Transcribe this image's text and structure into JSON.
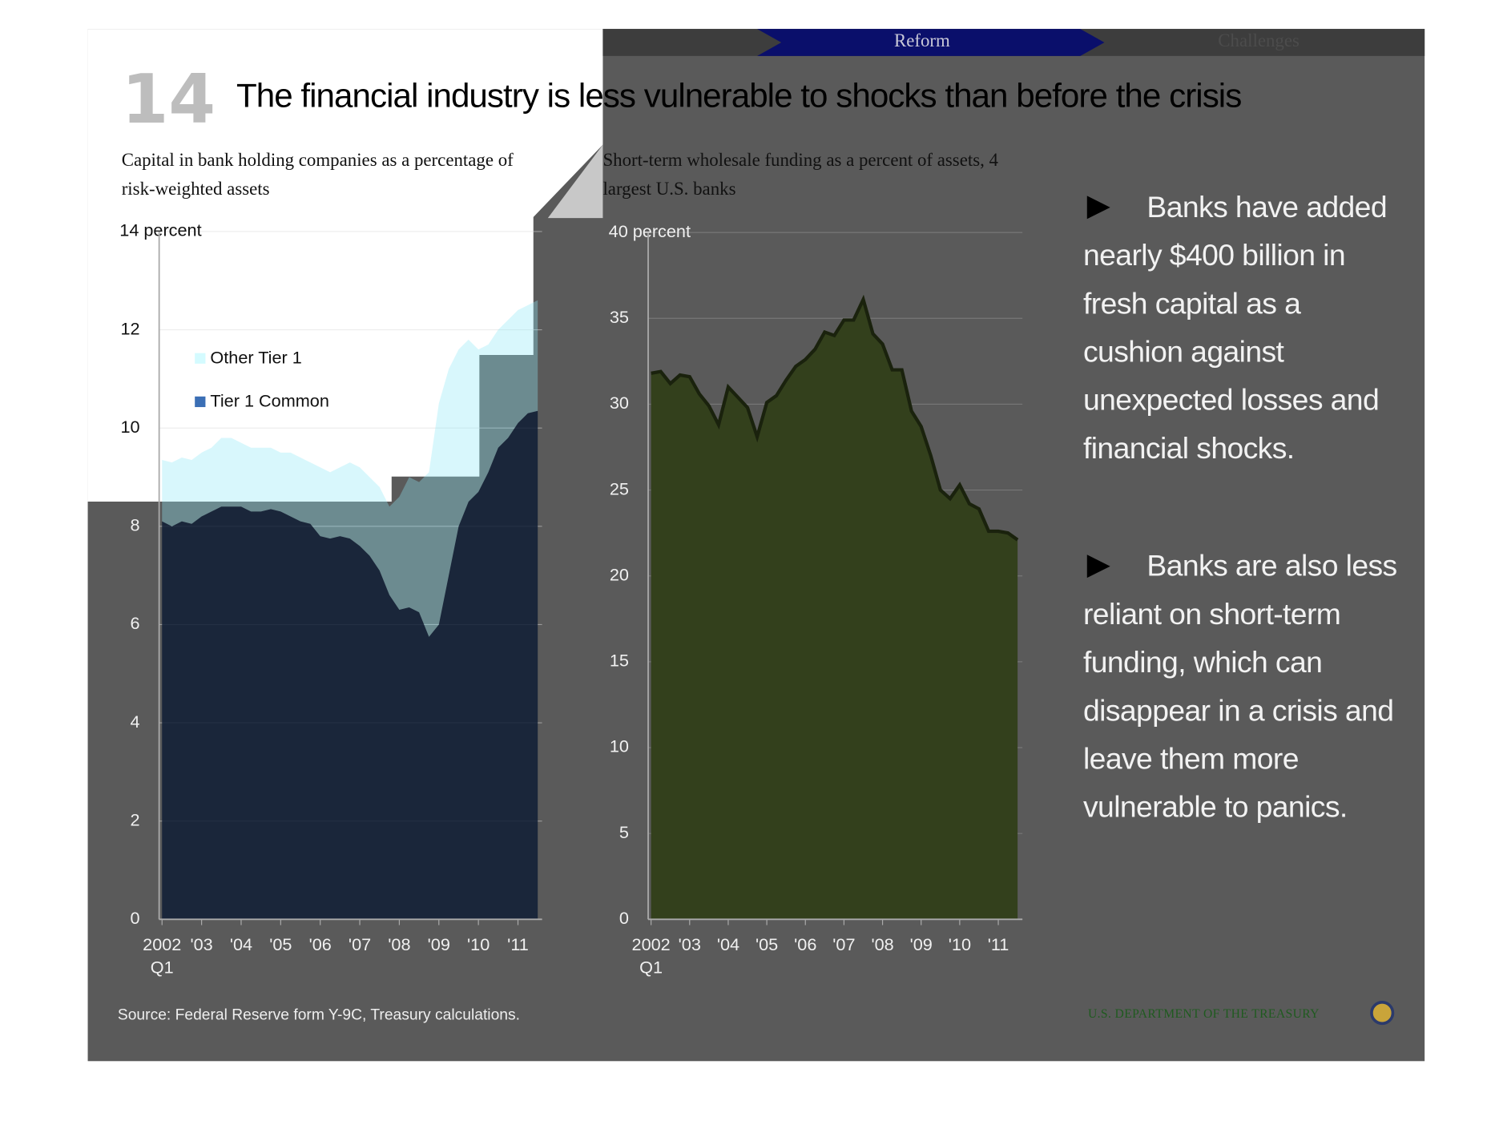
{
  "nav": [
    "Reform",
    "Challenges"
  ],
  "slide_number": "14",
  "title": "The financial industry is less vulnerable to shocks than before the crisis",
  "bullets": [
    "Banks have added nearly  $400 billion in fresh capital as a cushion against unexpected losses and financial shocks.",
    "Banks are also less reliant on short-term funding, which can disappear in a crisis and leave them more vulnerable to panics."
  ],
  "source": "Source: Federal Reserve form Y-9C, Treasury calculations.",
  "footer": "U.S. DEPARTMENT OF THE TREASURY",
  "chart_data": [
    {
      "type": "stacked_area",
      "title": "Capital in bank holding companies as a percentage of risk-weighted assets",
      "categories": [
        "2002 Q1",
        null,
        null,
        null,
        "'03",
        null,
        null,
        null,
        "'04",
        null,
        null,
        null,
        "'05",
        null,
        null,
        null,
        "'06",
        null,
        null,
        null,
        "'07",
        null,
        null,
        null,
        "'08",
        null,
        null,
        null,
        "'09",
        null,
        null,
        null,
        "'10",
        null,
        null,
        null,
        "'11",
        null,
        null
      ],
      "series": [
        {
          "name": "Tier 1 Common",
          "color": "#3b6fb5",
          "fill": "#0f1d35",
          "values": [
            8.1,
            8.0,
            8.1,
            8.05,
            8.2,
            8.3,
            8.4,
            8.4,
            8.4,
            8.3,
            8.3,
            8.35,
            8.3,
            8.2,
            8.1,
            8.05,
            7.8,
            7.75,
            7.8,
            7.75,
            7.6,
            7.4,
            7.1,
            6.6,
            6.3,
            6.35,
            6.25,
            5.75,
            6.0,
            7.0,
            8.0,
            8.5,
            8.7,
            9.1,
            9.6,
            9.8,
            10.1,
            10.3,
            10.35
          ]
        },
        {
          "name": "Other Tier 1",
          "color": "#d4fbff",
          "fill": "#8fe9f5",
          "values": [
            1.25,
            1.3,
            1.3,
            1.3,
            1.3,
            1.3,
            1.4,
            1.4,
            1.3,
            1.3,
            1.3,
            1.25,
            1.2,
            1.3,
            1.3,
            1.25,
            1.4,
            1.35,
            1.4,
            1.55,
            1.6,
            1.6,
            1.7,
            1.8,
            2.3,
            2.65,
            2.65,
            3.35,
            4.5,
            4.2,
            3.6,
            3.3,
            2.9,
            2.6,
            2.4,
            2.4,
            2.3,
            2.2,
            2.25
          ]
        }
      ],
      "ylim": [
        0,
        14
      ],
      "yticks": [
        0,
        2,
        4,
        6,
        8,
        10,
        12,
        {
          "value": 14,
          "label": "14 percent"
        }
      ],
      "grid": true
    },
    {
      "type": "area",
      "title": "Short-term wholesale funding as a percent of assets, 4 largest U.S. banks",
      "categories": [
        "2002 Q1",
        null,
        null,
        null,
        "'03",
        null,
        null,
        null,
        "'04",
        null,
        null,
        null,
        "'05",
        null,
        null,
        null,
        "'06",
        null,
        null,
        null,
        "'07",
        null,
        null,
        null,
        "'08",
        null,
        null,
        null,
        "'09",
        null,
        null,
        null,
        "'10",
        null,
        null,
        null,
        "'11",
        null,
        null
      ],
      "color": "#33401c",
      "line_color": "#1a220d",
      "values": [
        31.8,
        31.9,
        31.2,
        31.7,
        31.6,
        30.6,
        29.9,
        28.8,
        31.0,
        30.4,
        29.8,
        28.1,
        30.1,
        30.5,
        31.4,
        32.2,
        32.6,
        33.2,
        34.2,
        34.0,
        34.9,
        34.9,
        36.1,
        34.1,
        33.5,
        32.0,
        32.0,
        29.6,
        28.7,
        27.0,
        25.0,
        24.5,
        25.3,
        24.2,
        23.9,
        22.6,
        22.6,
        22.5,
        22.1
      ],
      "ylim": [
        0,
        40
      ],
      "yticks": [
        0,
        5,
        10,
        15,
        20,
        25,
        30,
        35,
        {
          "value": 40,
          "label": "40 percent"
        }
      ],
      "grid": true
    }
  ]
}
